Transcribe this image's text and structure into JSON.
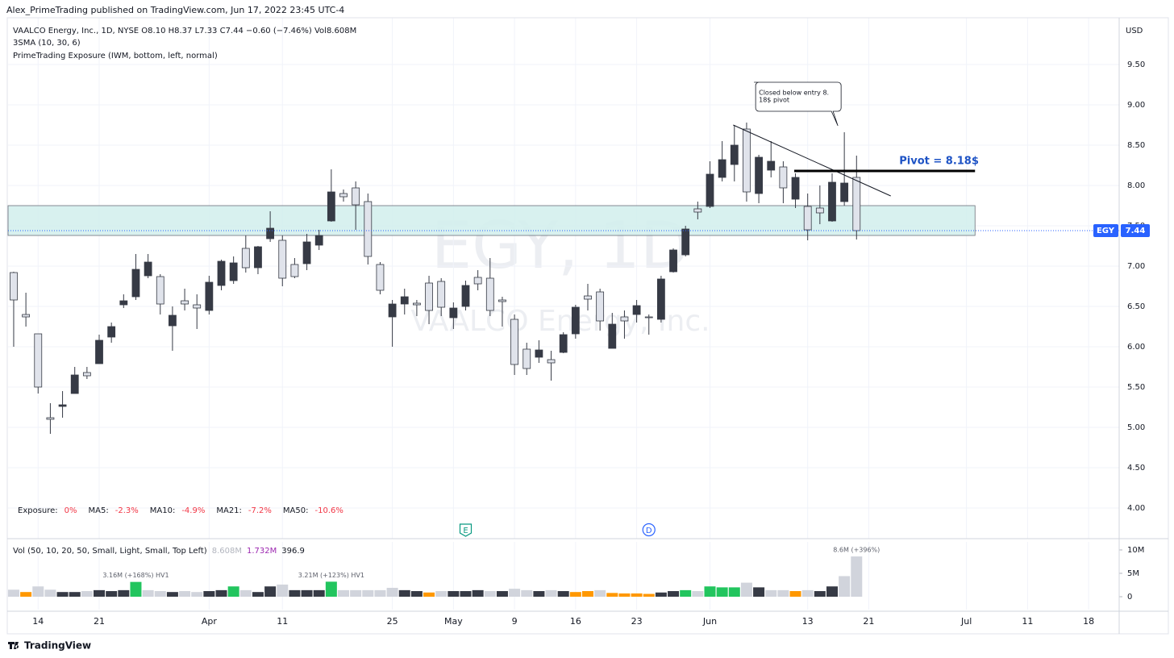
{
  "header": {
    "publisher": "Alex_PrimeTrading published on TradingView.com, Jun 17, 2022 23:45 UTC-4",
    "symbol_line": "VAALCO Energy, Inc., 1D, NYSE  O8.10 H8.37 L7.33 C7.44 −0.60 (−7.46%) Vol8.608M",
    "indicator_sma": "3SMA (10, 30, 6)",
    "indicator_exposure": "PrimeTrading Exposure (IWM, bottom, left, normal)",
    "currency": "USD",
    "watermark_symbol": "EGY, 1D",
    "watermark_name": "VAALCO Energy, Inc.",
    "price_tag": "EGY",
    "brand": "TradingView"
  },
  "chart_data": {
    "type": "candlestick",
    "open": [
      6.92,
      6.4,
      6.16,
      5.12,
      5.26,
      5.42,
      5.68,
      5.79,
      6.12,
      6.52,
      6.62,
      6.88,
      6.87,
      6.26,
      6.57,
      6.52,
      6.45,
      6.76,
      6.82,
      7.22,
      6.98,
      7.34,
      7.32,
      7.02,
      7.03,
      7.26,
      7.56,
      7.9,
      7.97,
      7.8,
      7.02,
      6.37,
      6.53,
      6.54,
      6.79,
      6.81,
      6.36,
      6.5,
      6.86,
      6.85,
      6.58,
      6.34,
      5.97,
      5.87,
      5.84,
      5.93,
      6.16,
      6.63,
      6.68,
      5.98,
      6.37,
      6.4,
      6.37,
      6.34,
      6.93,
      7.14,
      7.71,
      7.74,
      8.1,
      8.26,
      8.7,
      7.9,
      8.19,
      8.23,
      7.83,
      7.74,
      7.72,
      7.56,
      7.8,
      8.1
    ],
    "high": [
      6.93,
      6.67,
      6.16,
      5.3,
      5.45,
      5.75,
      5.75,
      6.15,
      6.3,
      6.65,
      7.15,
      7.15,
      6.9,
      6.5,
      6.72,
      6.65,
      6.88,
      7.08,
      7.12,
      7.38,
      7.25,
      7.68,
      7.38,
      7.1,
      7.4,
      7.45,
      8.2,
      7.95,
      8.05,
      7.9,
      7.05,
      6.58,
      6.72,
      6.58,
      6.88,
      6.85,
      6.55,
      6.82,
      6.95,
      7.1,
      6.62,
      6.4,
      6.05,
      6.08,
      5.95,
      6.18,
      6.52,
      6.78,
      6.72,
      6.42,
      6.45,
      6.58,
      6.4,
      6.88,
      7.22,
      7.5,
      7.8,
      8.3,
      8.55,
      8.75,
      8.78,
      8.38,
      8.55,
      8.3,
      8.15,
      7.9,
      8.0,
      8.15,
      8.66,
      8.37
    ],
    "low": [
      6.0,
      6.25,
      5.42,
      4.92,
      5.12,
      5.42,
      5.6,
      5.79,
      6.05,
      6.48,
      6.58,
      6.85,
      6.4,
      5.95,
      6.45,
      6.22,
      6.4,
      6.7,
      6.78,
      6.92,
      6.9,
      7.3,
      6.75,
      6.85,
      6.95,
      7.2,
      7.55,
      7.8,
      7.45,
      7.02,
      6.65,
      6.0,
      6.4,
      6.38,
      6.28,
      6.38,
      6.22,
      6.45,
      6.7,
      6.38,
      6.25,
      5.65,
      5.65,
      5.8,
      5.58,
      5.92,
      6.1,
      6.45,
      6.2,
      5.98,
      6.1,
      6.3,
      6.15,
      6.3,
      6.92,
      7.12,
      7.58,
      7.72,
      8.05,
      8.05,
      7.8,
      7.78,
      8.1,
      7.78,
      7.72,
      7.32,
      7.52,
      7.55,
      7.75,
      7.33
    ],
    "close": [
      6.58,
      6.37,
      5.5,
      5.1,
      5.28,
      5.65,
      5.64,
      6.08,
      6.25,
      6.57,
      6.96,
      7.05,
      6.53,
      6.39,
      6.53,
      6.48,
      6.8,
      7.06,
      7.04,
      6.98,
      7.24,
      7.47,
      6.85,
      6.87,
      7.3,
      7.38,
      7.92,
      7.86,
      7.76,
      7.12,
      6.7,
      6.53,
      6.62,
      6.52,
      6.45,
      6.49,
      6.48,
      6.76,
      6.78,
      6.45,
      6.56,
      5.78,
      5.73,
      5.96,
      5.8,
      6.15,
      6.49,
      6.59,
      6.32,
      6.28,
      6.32,
      6.51,
      6.36,
      6.84,
      7.2,
      7.46,
      7.67,
      8.14,
      8.32,
      8.5,
      7.92,
      8.35,
      8.3,
      7.97,
      8.1,
      7.45,
      7.66,
      8.04,
      8.03,
      7.44
    ],
    "up_color": "#363a45",
    "down_color": "#e0e3eb",
    "outline_color": "#363a45",
    "xlim": [
      -0.46,
      90.5
    ],
    "xticks": [
      {
        "value": 2,
        "label": "14"
      },
      {
        "value": 7,
        "label": "21"
      },
      {
        "value": 16,
        "label": "Apr"
      },
      {
        "value": 22,
        "label": "11"
      },
      {
        "value": 31,
        "label": "25"
      },
      {
        "value": 36,
        "label": "May"
      },
      {
        "value": 41,
        "label": "9"
      },
      {
        "value": 46,
        "label": "16"
      },
      {
        "value": 51,
        "label": "23"
      },
      {
        "value": 57,
        "label": "Jun"
      },
      {
        "value": 65,
        "label": "13"
      },
      {
        "value": 70,
        "label": "21"
      },
      {
        "value": 78,
        "label": "Jul"
      },
      {
        "value": 83,
        "label": "11"
      },
      {
        "value": 88,
        "label": "18"
      }
    ],
    "ylim": [
      3.62,
      10.02
    ],
    "yticks": [
      {
        "value": 4,
        "label": "4.00"
      },
      {
        "value": 4.5,
        "label": "4.50"
      },
      {
        "value": 5,
        "label": "5.00"
      },
      {
        "value": 5.5,
        "label": "5.50"
      },
      {
        "value": 6,
        "label": "6.00"
      },
      {
        "value": 6.5,
        "label": "6.50"
      },
      {
        "value": 7,
        "label": "7.00"
      },
      {
        "value": 7.5,
        "label": "7.50"
      },
      {
        "value": 8,
        "label": "8.00"
      },
      {
        "value": 8.5,
        "label": "8.50"
      },
      {
        "value": 9,
        "label": "9.00"
      },
      {
        "value": 9.5,
        "label": "9.50"
      }
    ],
    "grid": true,
    "last_price_color": "#2962ff",
    "zone": {
      "low": 7.38,
      "high": 7.75,
      "x": [
        -0.46,
        78.7
      ],
      "color": "#d4f0ee"
    },
    "trendline": {
      "x": [
        58.9,
        71.8
      ],
      "y": [
        8.75,
        7.87
      ]
    },
    "pivot": {
      "label": "Pivot = 8.18$",
      "value": 8.18,
      "x": [
        63.9,
        78.7
      ],
      "color": "#1e53c5"
    },
    "callout": {
      "lines": [
        "Closed below entry 8.",
        "18$ pivot"
      ],
      "x": 68
    },
    "events": [
      {
        "label": "E",
        "x": 37,
        "color": "#089981"
      },
      {
        "label": "D",
        "x": 52,
        "color": "#2962ff"
      }
    ],
    "exposure": [
      {
        "label": "Exposure:",
        "value": "0%"
      },
      {
        "label": "MA5:",
        "value": "-2.3%"
      },
      {
        "label": "MA10:",
        "value": "-4.9%"
      },
      {
        "label": "MA21:",
        "value": "-7.2%"
      },
      {
        "label": "MA50:",
        "value": "-10.6%"
      }
    ],
    "volume": {
      "legend": "Vol (50, 10, 20, 50, Small, Light, Small, Top Left)",
      "legend_values": [
        "8.608M",
        "1.732M",
        "396.9"
      ],
      "values": [
        1500000,
        1000000,
        2200000,
        1500000,
        1000000,
        1000000,
        1200000,
        1400000,
        1200000,
        1400000,
        3160000,
        1400000,
        1200000,
        1000000,
        1200000,
        1000000,
        1200000,
        1400000,
        2200000,
        1400000,
        1000000,
        2200000,
        2600000,
        1400000,
        1400000,
        1400000,
        3210000,
        1400000,
        1400000,
        1400000,
        1400000,
        1900000,
        1400000,
        1200000,
        900000,
        1200000,
        1200000,
        1200000,
        1400000,
        1200000,
        1200000,
        1700000,
        1400000,
        1200000,
        1400000,
        1200000,
        1000000,
        1200000,
        1400000,
        800000,
        700000,
        700000,
        600000,
        900000,
        1200000,
        1400000,
        1200000,
        2200000,
        2000000,
        2000000,
        3000000,
        2000000,
        1400000,
        1400000,
        1200000,
        1400000,
        1200000,
        2200000,
        4400000,
        8608000
      ],
      "colors": [
        "#d1d4dc",
        "#ff9800",
        "#d1d4dc",
        "#d1d4dc",
        "#363a45",
        "#363a45",
        "#d1d4dc",
        "#363a45",
        "#363a45",
        "#363a45",
        "#22c55e",
        "#d1d4dc",
        "#d1d4dc",
        "#363a45",
        "#d1d4dc",
        "#d1d4dc",
        "#363a45",
        "#363a45",
        "#22c55e",
        "#d1d4dc",
        "#363a45",
        "#363a45",
        "#d1d4dc",
        "#363a45",
        "#363a45",
        "#363a45",
        "#22c55e",
        "#d1d4dc",
        "#d1d4dc",
        "#d1d4dc",
        "#d1d4dc",
        "#d1d4dc",
        "#363a45",
        "#363a45",
        "#ff9800",
        "#d1d4dc",
        "#363a45",
        "#363a45",
        "#363a45",
        "#d1d4dc",
        "#363a45",
        "#d1d4dc",
        "#d1d4dc",
        "#363a45",
        "#d1d4dc",
        "#363a45",
        "#ff9800",
        "#ff9800",
        "#d1d4dc",
        "#ff9800",
        "#ff9800",
        "#ff9800",
        "#ff9800",
        "#363a45",
        "#363a45",
        "#22c55e",
        "#d1d4dc",
        "#22c55e",
        "#22c55e",
        "#22c55e",
        "#d1d4dc",
        "#363a45",
        "#d1d4dc",
        "#d1d4dc",
        "#ff9800",
        "#d1d4dc",
        "#363a45",
        "#363a45",
        "#d1d4dc",
        "#d1d4dc"
      ],
      "ylim": [
        -2760000,
        11720000
      ],
      "yticks": [
        0,
        {
          "value": 5000000,
          "label": "5M"
        },
        {
          "value": 10000000,
          "label": "10M"
        }
      ],
      "annotations": [
        {
          "label": "3.16M (+168%) HV1",
          "x": 10
        },
        {
          "label": "3.21M (+123%) HV1",
          "x": 26
        },
        {
          "label": "8.6M (+396%)",
          "x": 69
        }
      ]
    }
  }
}
